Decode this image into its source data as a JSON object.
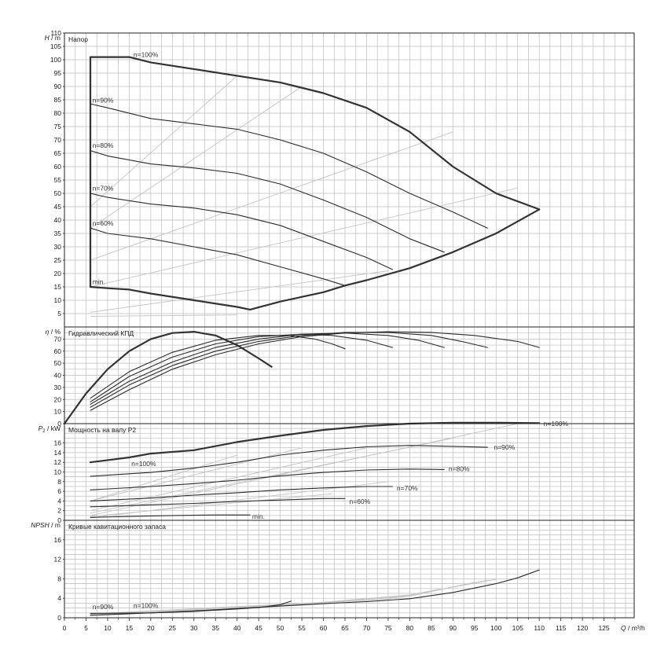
{
  "chart_data": [
    {
      "type": "line",
      "panel": "head",
      "title": "Напор",
      "ylabel_var": "H",
      "ylabel_unit": "m",
      "ylim": [
        0,
        110
      ],
      "yticks": [
        5,
        10,
        15,
        20,
        25,
        30,
        35,
        40,
        45,
        50,
        55,
        60,
        65,
        70,
        75,
        80,
        85,
        90,
        95,
        100,
        105,
        110
      ],
      "series": [
        {
          "name": "n=100%",
          "style": "bold",
          "label_at": [
            16,
            101
          ],
          "x": [
            6,
            15,
            20,
            30,
            40,
            50,
            60,
            70,
            80,
            90,
            100,
            110
          ],
          "values": [
            101,
            101,
            99,
            96.5,
            94,
            91.5,
            87.5,
            82,
            73,
            60,
            50,
            44
          ]
        },
        {
          "name": "n=90%",
          "label_at": [
            6.5,
            84
          ],
          "x": [
            6,
            10,
            20,
            30,
            40,
            50,
            60,
            70,
            80,
            90,
            98
          ],
          "values": [
            83.5,
            82,
            78,
            76,
            74,
            70,
            65,
            58,
            50,
            43,
            37
          ]
        },
        {
          "name": "n=80%",
          "label_at": [
            6.5,
            67
          ],
          "x": [
            6,
            10,
            20,
            30,
            40,
            50,
            60,
            70,
            80,
            88
          ],
          "values": [
            66,
            64,
            61,
            59.5,
            57.5,
            53.5,
            47.5,
            41,
            33,
            28
          ]
        },
        {
          "name": "n=70%",
          "label_at": [
            6.5,
            51
          ],
          "x": [
            6,
            10,
            20,
            30,
            40,
            50,
            60,
            70,
            76
          ],
          "values": [
            50,
            48.5,
            46,
            44.5,
            42,
            38,
            32,
            26,
            21.5
          ]
        },
        {
          "name": "n=60%",
          "label_at": [
            6.5,
            38
          ],
          "x": [
            6,
            10,
            20,
            30,
            40,
            50,
            60,
            65
          ],
          "values": [
            37,
            35,
            33,
            30,
            27,
            22.5,
            18,
            15.5
          ]
        },
        {
          "name": "min.",
          "style": "bold",
          "label_at": [
            6.5,
            16
          ],
          "x": [
            6,
            10,
            15,
            20,
            30,
            40,
            43
          ],
          "values": [
            15,
            14.5,
            14,
            12.5,
            10,
            7.5,
            6.5
          ]
        },
        {
          "name": "",
          "style": "bold",
          "x": [
            6,
            6
          ],
          "values": [
            15,
            101
          ]
        },
        {
          "name": "",
          "style": "bold",
          "x": [
            43,
            50,
            60,
            65,
            70,
            80,
            90,
            100,
            110
          ],
          "values": [
            6.5,
            9.5,
            13,
            15.5,
            17.5,
            22,
            28,
            35,
            44
          ]
        }
      ],
      "guides": [
        {
          "x": [
            6,
            40
          ],
          "values": [
            45,
            94
          ]
        },
        {
          "x": [
            6,
            55
          ],
          "values": [
            37,
            90
          ]
        },
        {
          "x": [
            6,
            90
          ],
          "values": [
            25,
            73
          ]
        },
        {
          "x": [
            6,
            105
          ],
          "values": [
            15,
            52
          ]
        },
        {
          "x": [
            6,
            75
          ],
          "values": [
            5.5,
            21
          ]
        },
        {
          "x": [
            6,
            40
          ],
          "values": [
            4,
            4.5
          ]
        }
      ]
    },
    {
      "type": "line",
      "panel": "efficiency",
      "title": "Гидравлический КПД",
      "ylabel_var": "η",
      "ylabel_unit": "%",
      "ylim": [
        0,
        80
      ],
      "yticks": [
        0,
        10,
        20,
        30,
        40,
        50,
        60,
        70
      ],
      "series": [
        {
          "name": "min.",
          "style": "bold",
          "x": [
            0,
            5,
            10,
            15,
            20,
            25,
            30,
            35,
            40,
            45,
            48
          ],
          "values": [
            0,
            25,
            45,
            60,
            70,
            75,
            76,
            73,
            65,
            54,
            47
          ]
        },
        {
          "name": "n=60%",
          "x": [
            6,
            15,
            25,
            35,
            45,
            52,
            58,
            62,
            65
          ],
          "values": [
            21,
            43,
            59,
            69,
            73,
            73,
            70,
            66,
            62
          ]
        },
        {
          "name": "n=70%",
          "x": [
            6,
            15,
            25,
            35,
            45,
            55,
            62,
            70,
            76
          ],
          "values": [
            18,
            39,
            55,
            66,
            72,
            74,
            73,
            69,
            63
          ]
        },
        {
          "name": "n=80%",
          "x": [
            6,
            15,
            25,
            35,
            45,
            55,
            65,
            75,
            82,
            88
          ],
          "values": [
            16,
            35,
            51,
            63,
            70,
            74,
            75,
            73,
            69,
            63
          ]
        },
        {
          "name": "n=90%",
          "x": [
            6,
            15,
            25,
            35,
            45,
            55,
            65,
            75,
            85,
            92,
            98
          ],
          "values": [
            13.5,
            32,
            48,
            60,
            68,
            73,
            75.5,
            75.5,
            73,
            68,
            63
          ]
        },
        {
          "name": "n=100%",
          "x": [
            6,
            15,
            25,
            35,
            45,
            55,
            65,
            75,
            85,
            95,
            105,
            110
          ],
          "values": [
            11,
            28,
            45,
            57,
            66,
            72,
            75,
            76,
            75.5,
            73,
            68,
            63
          ]
        }
      ]
    },
    {
      "type": "line",
      "panel": "power",
      "title": "Мощность на валу P2",
      "ylabel_var": "P",
      "ylabel_sub": "2",
      "ylabel_unit": "kW",
      "ylim": [
        0,
        20
      ],
      "yticks": [
        0,
        2,
        4,
        6,
        8,
        10,
        12,
        14,
        16
      ],
      "series": [
        {
          "name": "n=100%",
          "style": "bold",
          "label_at": [
            111,
            19.5
          ],
          "x": [
            6,
            15,
            20,
            30,
            40,
            50,
            60,
            70,
            80,
            90,
            100,
            110
          ],
          "values": [
            12,
            13,
            13.8,
            14.5,
            16.2,
            17.5,
            18.7,
            19.5,
            20,
            20.2,
            20.2,
            20.1
          ]
        },
        {
          "name": "n=90%",
          "label_at": [
            99.5,
            14.6
          ],
          "x": [
            6,
            20,
            30,
            40,
            50,
            60,
            70,
            80,
            90,
            98
          ],
          "values": [
            9.1,
            9.9,
            10.8,
            12,
            13.5,
            14.5,
            15.2,
            15.5,
            15.3,
            15.1
          ]
        },
        {
          "name": "n=80%",
          "label_at": [
            89,
            10.2
          ],
          "x": [
            6,
            20,
            30,
            40,
            50,
            60,
            70,
            80,
            88
          ],
          "values": [
            6.3,
            7,
            7.6,
            8.3,
            9.2,
            9.9,
            10.4,
            10.6,
            10.5
          ]
        },
        {
          "name": "n=70%",
          "label_at": [
            77,
            6.2
          ],
          "x": [
            6,
            20,
            30,
            40,
            50,
            60,
            70,
            76
          ],
          "values": [
            4,
            4.6,
            5.2,
            5.7,
            6.3,
            6.7,
            7,
            7
          ]
        },
        {
          "name": "n=60%",
          "label_at": [
            66,
            3.4
          ],
          "x": [
            6,
            20,
            30,
            40,
            50,
            60,
            65
          ],
          "values": [
            2.8,
            3.2,
            3.5,
            3.9,
            4.2,
            4.5,
            4.5
          ]
        },
        {
          "name": "min.",
          "label_at": [
            43.5,
            0.3
          ],
          "x": [
            6,
            15,
            25,
            35,
            43
          ],
          "values": [
            0.6,
            0.8,
            1,
            1.1,
            1.1
          ]
        }
      ],
      "guides": [
        {
          "x": [
            6,
            40
          ],
          "values": [
            4,
            13.5
          ]
        },
        {
          "x": [
            6,
            55
          ],
          "values": [
            4,
            15
          ]
        },
        {
          "x": [
            6,
            70
          ],
          "values": [
            2,
            15
          ]
        },
        {
          "x": [
            6,
            90
          ],
          "values": [
            1.5,
            17
          ]
        },
        {
          "x": [
            6,
            105
          ],
          "values": [
            1,
            20
          ]
        },
        {
          "x": [
            6,
            75
          ],
          "values": [
            0.5,
            8
          ]
        },
        {
          "x": [
            6,
            62
          ],
          "values": [
            0.8,
            5.5
          ]
        }
      ],
      "extra_labels": [
        {
          "text": "n=100%",
          "at": [
            15.5,
            11.2
          ]
        }
      ]
    },
    {
      "type": "line",
      "panel": "npsh",
      "title": "Кривые кавитационного запаса",
      "ylabel_var": "NPSH",
      "ylabel_unit": "m",
      "ylim": [
        0,
        20
      ],
      "yticks": [
        0,
        4,
        8,
        12,
        16
      ],
      "series": [
        {
          "name": "n=90%",
          "label_at": [
            6.5,
            1.8
          ],
          "x": [
            6,
            20,
            30,
            40,
            45,
            50,
            52.5
          ],
          "values": [
            0.9,
            1,
            1.3,
            1.8,
            2.1,
            2.7,
            3.4
          ]
        },
        {
          "name": "n=100%",
          "label_at": [
            16,
            2
          ],
          "x": [
            6,
            20,
            30,
            40,
            50,
            60,
            70,
            80,
            90,
            100,
            105,
            110
          ],
          "values": [
            0.5,
            1,
            1.4,
            1.9,
            2.4,
            2.9,
            3.3,
            3.9,
            5.2,
            7,
            8.2,
            9.8
          ]
        }
      ],
      "guides": [
        {
          "x": [
            6,
            40,
            60,
            75,
            87
          ],
          "values": [
            0.6,
            1.9,
            2.8,
            3.8,
            5.9
          ]
        },
        {
          "x": [
            6,
            40,
            60,
            80,
            95
          ],
          "values": [
            0.7,
            2.1,
            3,
            4.4,
            7.3
          ]
        },
        {
          "x": [
            6,
            40,
            60,
            80,
            98
          ],
          "values": [
            0.8,
            2.2,
            3.1,
            4.6,
            7.7
          ]
        },
        {
          "x": [
            6,
            40,
            60,
            80,
            100
          ],
          "values": [
            0.8,
            2.3,
            3.2,
            4.7,
            7.9
          ]
        }
      ]
    }
  ],
  "x_axis": {
    "xlim": [
      0,
      132
    ],
    "tick_labels": [
      "0",
      "5",
      "10",
      "15",
      "20",
      "25",
      "30",
      "35",
      "40",
      "45",
      "50",
      "55",
      "60",
      "65",
      "70",
      "75",
      "80",
      "85",
      "90",
      "95",
      "100",
      "105",
      "110",
      "115",
      "120",
      "125"
    ],
    "label_var": "Q",
    "label_unit": "m³/h"
  },
  "colors": {
    "grid": "#bdbdbd",
    "frame": "#222222",
    "curve": "#2b2b2b",
    "bold_curve": "#333333",
    "guide": "#c4c4c4",
    "text": "#1a1a1a"
  }
}
